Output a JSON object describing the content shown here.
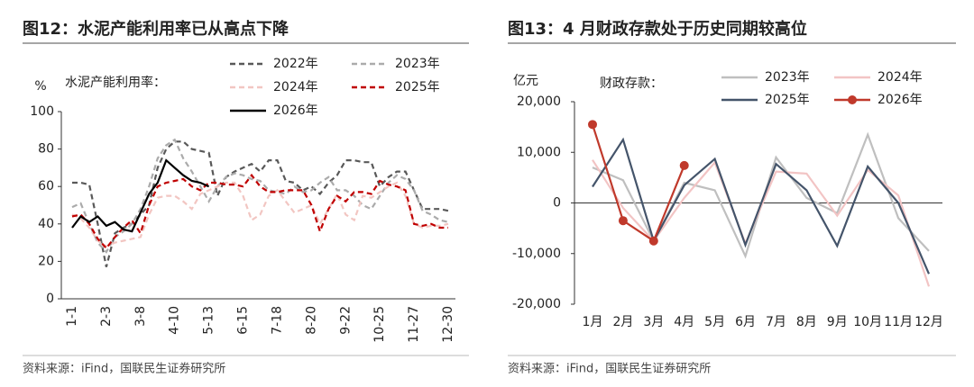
{
  "chart_data": [
    {
      "type": "line",
      "title": "图12：水泥产能利用率已从高点下降",
      "y_label": "%",
      "legend_title": "水泥产能利用率：",
      "categories": [
        "1-1",
        null,
        null,
        null,
        "2-3",
        null,
        null,
        null,
        "3-8",
        null,
        null,
        null,
        "4-10",
        null,
        null,
        null,
        "5-13",
        null,
        null,
        null,
        "6-15",
        null,
        null,
        null,
        "7-18",
        null,
        null,
        null,
        "8-20",
        null,
        null,
        null,
        "9-22",
        null,
        null,
        null,
        "10-25",
        null,
        null,
        null,
        "11-27",
        null,
        null,
        null,
        "12-30"
      ],
      "ylim": [
        0,
        100
      ],
      "yticks": [
        0,
        20,
        40,
        60,
        80,
        100
      ],
      "series": [
        {
          "name": "2022年",
          "color": "#595959",
          "dashed": true,
          "values": [
            62,
            62,
            61,
            40,
            17,
            35,
            38,
            40,
            45,
            50,
            70,
            80,
            84,
            84,
            80,
            79,
            78,
            55,
            65,
            68,
            70,
            72,
            68,
            74,
            74,
            63,
            62,
            58,
            60,
            56,
            62,
            66,
            74,
            74,
            73,
            73,
            60,
            65,
            68,
            68,
            58,
            48,
            48,
            48,
            47
          ]
        },
        {
          "name": "2023年",
          "color": "#ababab",
          "dashed": true,
          "values": [
            49,
            51,
            40,
            30,
            25,
            33,
            36,
            40,
            48,
            60,
            75,
            82,
            85,
            75,
            68,
            60,
            52,
            60,
            65,
            67,
            66,
            64,
            63,
            58,
            57,
            56,
            60,
            57,
            58,
            62,
            65,
            58,
            58,
            55,
            50,
            48,
            55,
            62,
            66,
            64,
            58,
            47,
            45,
            42,
            41
          ]
        },
        {
          "name": "2024年",
          "color": "#f2c6c2",
          "dashed": true,
          "values": [
            45,
            43,
            38,
            31,
            28,
            30,
            31,
            32,
            33,
            45,
            54,
            55,
            55,
            52,
            48,
            56,
            58,
            60,
            62,
            62,
            55,
            42,
            45,
            55,
            58,
            52,
            46,
            48,
            50,
            40,
            48,
            56,
            45,
            42,
            55,
            54,
            57,
            60,
            62,
            55,
            40,
            38,
            39,
            39,
            40
          ]
        },
        {
          "name": "2025年",
          "color": "#c00000",
          "dashed": true,
          "values": [
            44,
            45,
            40,
            32,
            27,
            33,
            38,
            42,
            35,
            50,
            60,
            62,
            63,
            64,
            60,
            58,
            62,
            62,
            61,
            61,
            60,
            66,
            60,
            57,
            57,
            58,
            58,
            58,
            50,
            36,
            48,
            55,
            52,
            57,
            57,
            56,
            63,
            61,
            60,
            58,
            40,
            39,
            40,
            38,
            38
          ]
        },
        {
          "name": "2026年",
          "color": "#000000",
          "dashed": false,
          "values": [
            38,
            44,
            41,
            44,
            39,
            41,
            37,
            36,
            46,
            56,
            62,
            74,
            70,
            66,
            63,
            62,
            60,
            null,
            null,
            null,
            null,
            null,
            null,
            null,
            null,
            null,
            null,
            null,
            null,
            null,
            null,
            null,
            null,
            null,
            null,
            null,
            null,
            null,
            null,
            null,
            null,
            null,
            null,
            null,
            null
          ]
        }
      ],
      "source": "资料来源：iFind，国联民生证券研究所"
    },
    {
      "type": "line",
      "title": "图13：4 月财政存款处于历史同期较高位",
      "y_label": "亿元",
      "legend_title": "财政存款：",
      "categories": [
        "1月",
        "2月",
        "3月",
        "4月",
        "5月",
        "6月",
        "7月",
        "8月",
        "9月",
        "10月",
        "11月",
        "12月"
      ],
      "ylim": [
        -20000,
        20000
      ],
      "yticks": [
        {
          "value": -20000,
          "label": "-20,000"
        },
        {
          "value": -10000,
          "label": "-10,000"
        },
        0,
        {
          "value": 10000,
          "label": "10,000"
        },
        {
          "value": 20000,
          "label": "20,000"
        }
      ],
      "series": [
        {
          "name": "2023年",
          "color": "#bfbfbf",
          "dashed": false,
          "values": [
            7000,
            4500,
            -7500,
            4000,
            2500,
            -10500,
            9000,
            1000,
            -2000,
            13500,
            -3000,
            -9500
          ]
        },
        {
          "name": "2024年",
          "color": "#f2c4c4",
          "dashed": false,
          "values": [
            8500,
            -1000,
            -7500,
            1000,
            8000,
            -8000,
            6200,
            5800,
            -2500,
            6500,
            1500,
            -16500
          ]
        },
        {
          "name": "2025年",
          "color": "#44546a",
          "dashed": false,
          "values": [
            3200,
            12500,
            -7500,
            3500,
            8700,
            -8300,
            7700,
            2500,
            -8500,
            7200,
            0,
            -14000
          ]
        },
        {
          "name": "2026年",
          "color": "#c0392b",
          "dashed": false,
          "marker": true,
          "values": [
            15500,
            -3500,
            -7500,
            7400,
            null,
            null,
            null,
            null,
            null,
            null,
            null,
            null
          ]
        }
      ],
      "source": "资料来源：iFind，国联民生证券研究所"
    }
  ]
}
